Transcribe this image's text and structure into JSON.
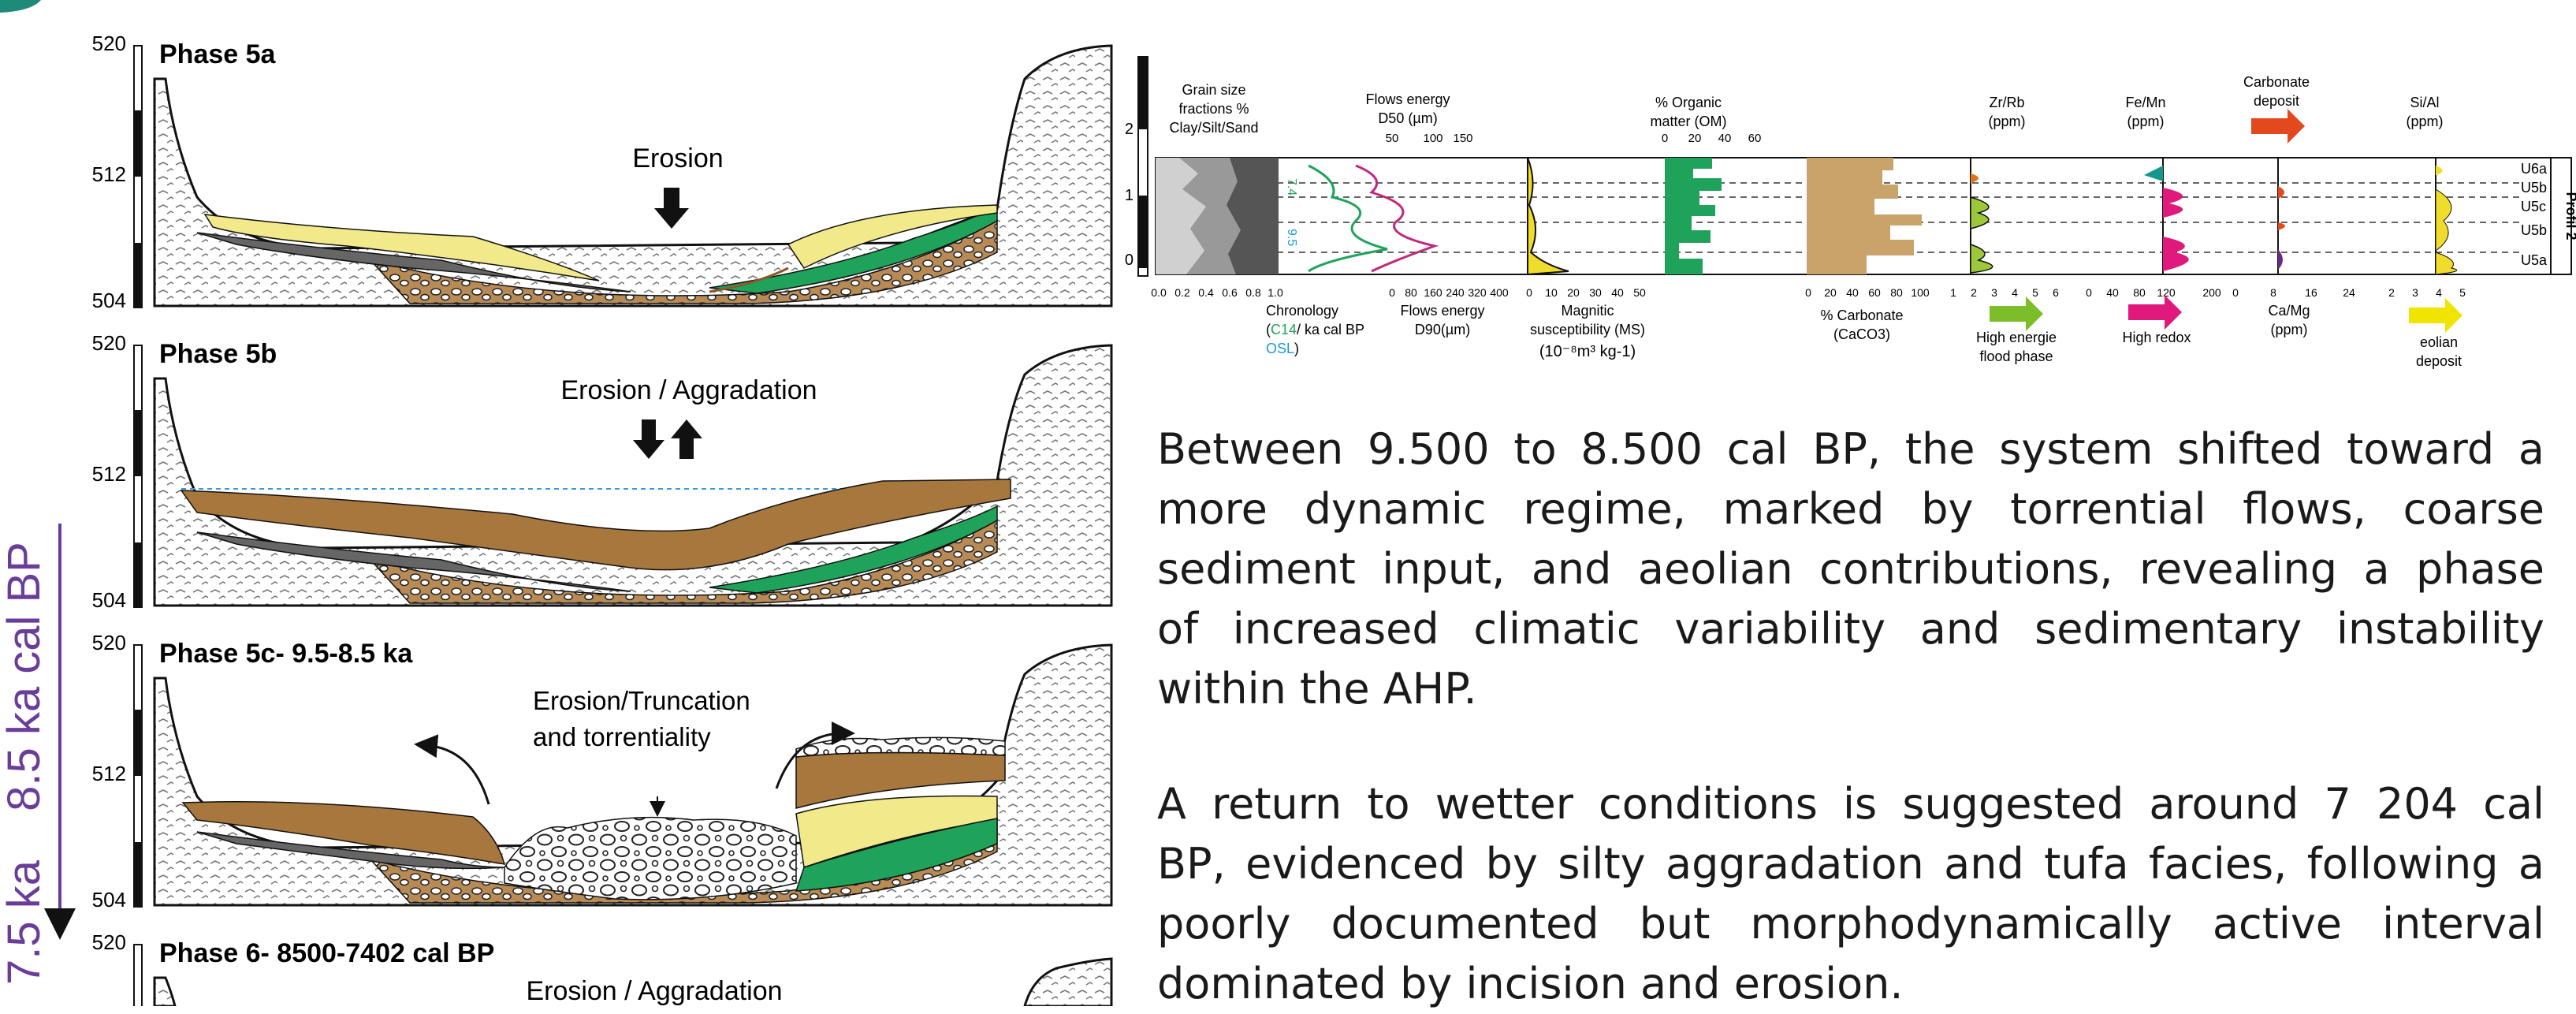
{
  "timeline": {
    "top_label": "8.5 ka cal BP",
    "bottom_label": "7.5 ka",
    "color": "#6a3d9a"
  },
  "sections": [
    {
      "title": "Phase 5a",
      "annotation": "Erosion",
      "elev_top": "520",
      "elev_mid": "512",
      "elev_bottom": "504"
    },
    {
      "title": "Phase 5b",
      "annotation": "Erosion / Aggradation",
      "elev_top": "520",
      "elev_mid": "512",
      "elev_bottom": "504"
    },
    {
      "title": "Phase 5c- 9.5-8.5 ka",
      "annotation_line1": "Erosion/Truncation",
      "annotation_line2": "and torrentiality",
      "elev_top": "520",
      "elev_mid": "512",
      "elev_bottom": "504"
    },
    {
      "title": "Phase 6-  8500-7402 cal BP",
      "annotation": "Erosion / Aggradation",
      "elev_top": "520"
    }
  ],
  "profile": {
    "name": "Profil 2",
    "depth_ticks": [
      "2",
      "1",
      "0"
    ],
    "units": [
      "U6a",
      "U5b",
      "U5c",
      "U5b",
      "U5a"
    ],
    "columns": [
      {
        "title": [
          "Grain size",
          "fractions %",
          "Clay/Silt/Sand"
        ],
        "bottom_ticks": [
          "0.0",
          "0.2",
          "0.4",
          "0.6",
          "0.8",
          "1.0"
        ]
      },
      {
        "title": [
          "Flows energy",
          "D50 (µm)"
        ],
        "top_ticks": [
          "50",
          "100",
          "150"
        ],
        "bottom_ticks": [
          "0",
          "80",
          "160",
          "240",
          "320",
          "400"
        ],
        "bottom_label": [
          "Flows energy",
          "D90(µm)"
        ]
      },
      {
        "bottom_ticks": [
          "0",
          "10",
          "20",
          "30",
          "40",
          "50"
        ],
        "bottom_label": [
          "Magnitic",
          "susceptibility (MS)"
        ],
        "unit_line": "(10⁻⁸m³ kg-1)"
      },
      {
        "title": [
          "% Organic",
          "matter (OM)"
        ],
        "top_ticks": [
          "0",
          "20",
          "40",
          "60"
        ]
      },
      {
        "bottom_ticks": [
          "0",
          "20",
          "40",
          "60",
          "80",
          "100"
        ],
        "bottom_label": [
          "% Carbonate",
          "(CaCO3)"
        ]
      },
      {
        "title": [
          "Zr/Rb",
          "(ppm)"
        ],
        "bottom_ticks": [
          "1",
          "2",
          "3",
          "4",
          "5",
          "6"
        ]
      },
      {
        "title": [
          "Fe/Mn",
          "(ppm)"
        ],
        "bottom_ticks": [
          "0",
          "40",
          "80",
          "120",
          "200"
        ]
      },
      {
        "title": [
          "Carbonate",
          "deposit"
        ],
        "bottom_ticks": [
          "0",
          "8",
          "16",
          "24"
        ],
        "bottom_label": [
          "Ca/Mg",
          "(ppm)"
        ]
      },
      {
        "title": [
          "Si/Al",
          "(ppm)"
        ],
        "bottom_ticks": [
          "2",
          "3",
          "4",
          "5"
        ]
      }
    ],
    "chronology": {
      "line1": "Chronology",
      "c14": "C14",
      "line2_rest": "/ ka cal BP",
      "osl": "OSL",
      "close": ")"
    },
    "chrono_vals": [
      "7.4",
      "9.5"
    ],
    "legend": {
      "green": [
        "High energie",
        "flood phase"
      ],
      "pink": [
        "High redox"
      ],
      "yellow": [
        "eolian",
        "deposit"
      ]
    }
  },
  "paragraphs": [
    {
      "lines": [
        "Between 9.500 to 8.500 cal BP, the system shifted toward a",
        "more dynamic regime, marked by torrential flows, coarse",
        "sediment input, and aeolian contributions, revealing a phase",
        "of increased climatic variability and sedimentary instability",
        "within the AHP."
      ]
    },
    {
      "lines": [
        "A return to wetter conditions is suggested around 7 204 cal",
        "BP, evidenced by silty aggradation and tufa facies, following a",
        "poorly documented but morphodynamically active interval",
        "dominated by incision and erosion."
      ]
    }
  ]
}
